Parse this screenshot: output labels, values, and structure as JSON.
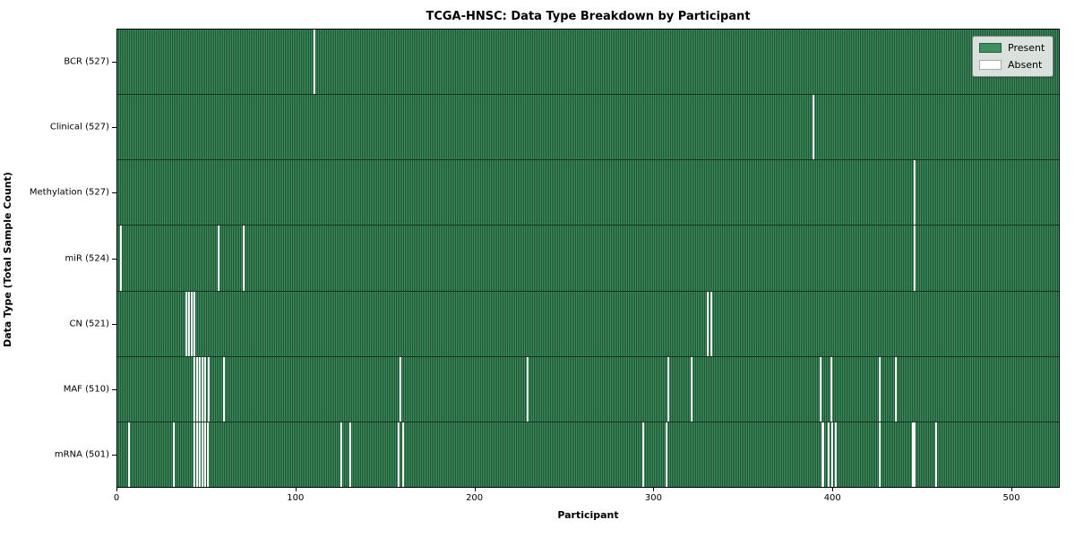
{
  "title": "TCGA-HNSC: Data Type Breakdown by Participant",
  "colors": {
    "present": "#3d8f5f",
    "present_dark": "#1f5233",
    "absent": "#fafafa"
  },
  "chart_data": {
    "type": "heatmap",
    "title": "TCGA-HNSC: Data Type Breakdown by Participant",
    "xlabel": "Participant",
    "ylabel": "Data Type (Total Sample Count)",
    "x_range": [
      0,
      527
    ],
    "x_ticks": [
      0,
      100,
      200,
      300,
      400,
      500
    ],
    "legend_labels": [
      "Present",
      "Absent"
    ],
    "legend_position": "upper right",
    "grid": false,
    "rows": [
      {
        "data_type": "BCR",
        "label": "BCR (527)",
        "total_sample_count": 527,
        "absent_participants": [
          110
        ]
      },
      {
        "data_type": "Clinical",
        "label": "Clinical (527)",
        "total_sample_count": 527,
        "absent_participants": [
          389
        ]
      },
      {
        "data_type": "Methylation",
        "label": "Methylation (527)",
        "total_sample_count": 527,
        "absent_participants": [
          446
        ]
      },
      {
        "data_type": "miR",
        "label": "miR (524)",
        "total_sample_count": 524,
        "absent_participants": [
          1.5,
          56,
          70,
          446
        ]
      },
      {
        "data_type": "CN",
        "label": "CN (521)",
        "total_sample_count": 521,
        "absent_participants": [
          38,
          39.5,
          41,
          42.5,
          330,
          332
        ]
      },
      {
        "data_type": "MAF",
        "label": "MAF (510)",
        "total_sample_count": 510,
        "absent_participants": [
          42.5,
          44,
          45.5,
          47,
          48.5,
          50.5,
          59,
          158,
          229,
          308,
          321,
          393,
          399,
          426,
          435
        ]
      },
      {
        "data_type": "mRNA",
        "label": "mRNA (501)",
        "total_sample_count": 501,
        "absent_participants": [
          6,
          31,
          42.5,
          44,
          45.5,
          47,
          48.5,
          50,
          125,
          130,
          157,
          159.5,
          294,
          307,
          {
            "x": 394,
            "w": 1.5
          },
          397.5,
          399.5,
          401.5,
          426,
          {
            "x": 445,
            "w": 2
          },
          458
        ]
      }
    ]
  }
}
